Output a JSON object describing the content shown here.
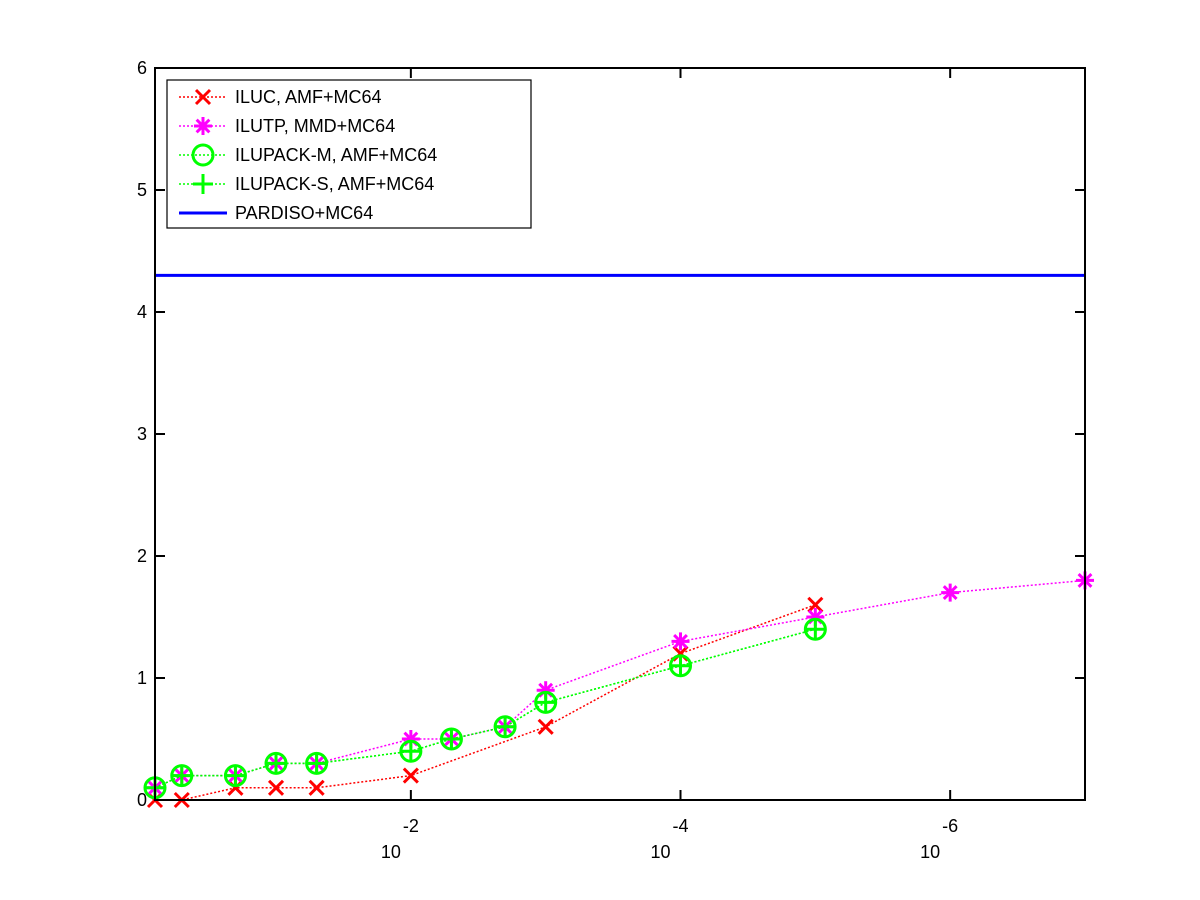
{
  "chart_data": {
    "type": "line",
    "title": "",
    "xlabel": "",
    "ylabel": "",
    "x_scale": "log-reversed",
    "xlim": [
      0.79,
      1e-07
    ],
    "ylim": [
      0,
      6
    ],
    "yticks": [
      0,
      1,
      2,
      3,
      4,
      5,
      6
    ],
    "ytick_labels": [
      "0",
      "1",
      "2",
      "3",
      "4",
      "5",
      "6"
    ],
    "xticks": [
      0.01,
      0.0001,
      1e-06
    ],
    "xtick_labels": [
      {
        "base": "10",
        "exp": "-2"
      },
      {
        "base": "10",
        "exp": "-4"
      },
      {
        "base": "10",
        "exp": "-6"
      }
    ],
    "grid": false,
    "legend_position": "top-left",
    "series": [
      {
        "name": "ILUC, AMF+MC64",
        "color": "#ff0000",
        "marker": "x",
        "linestyle": "dotted",
        "x": [
          0.79,
          0.5,
          0.2,
          0.1,
          0.05,
          0.01,
          0.001,
          0.0001,
          1e-05
        ],
        "y": [
          0.0,
          0.0,
          0.1,
          0.1,
          0.1,
          0.2,
          0.6,
          1.2,
          1.6
        ]
      },
      {
        "name": "ILUTP, MMD+MC64",
        "color": "#ff00ff",
        "marker": "asterisk",
        "linestyle": "dotted",
        "x": [
          0.79,
          0.5,
          0.2,
          0.1,
          0.05,
          0.01,
          0.005,
          0.002,
          0.001,
          0.0001,
          1e-05,
          1e-06,
          1e-07
        ],
        "y": [
          0.1,
          0.2,
          0.2,
          0.3,
          0.3,
          0.5,
          0.5,
          0.6,
          0.9,
          1.3,
          1.5,
          1.7,
          1.8
        ]
      },
      {
        "name": "ILUPACK-M, AMF+MC64",
        "color": "#00ff00",
        "marker": "circle",
        "linestyle": "dotted",
        "x": [
          0.79,
          0.5,
          0.2,
          0.1,
          0.05,
          0.01,
          0.005,
          0.002,
          0.001,
          0.0001,
          1e-05
        ],
        "y": [
          0.1,
          0.2,
          0.2,
          0.3,
          0.3,
          0.4,
          0.5,
          0.6,
          0.8,
          1.1,
          1.4
        ]
      },
      {
        "name": "ILUPACK-S, AMF+MC64",
        "color": "#00ff00",
        "marker": "plus",
        "linestyle": "dotted",
        "x": [
          0.79,
          0.5,
          0.2,
          0.1,
          0.05,
          0.01,
          0.005,
          0.002,
          0.001,
          0.0001,
          1e-05
        ],
        "y": [
          0.1,
          0.2,
          0.2,
          0.3,
          0.3,
          0.4,
          0.5,
          0.6,
          0.8,
          1.1,
          1.4
        ]
      },
      {
        "name": "PARDISO+MC64",
        "color": "#0000ff",
        "marker": "none",
        "linestyle": "solid",
        "x": [
          0.79,
          1e-07
        ],
        "y": [
          4.3,
          4.3
        ]
      }
    ]
  }
}
